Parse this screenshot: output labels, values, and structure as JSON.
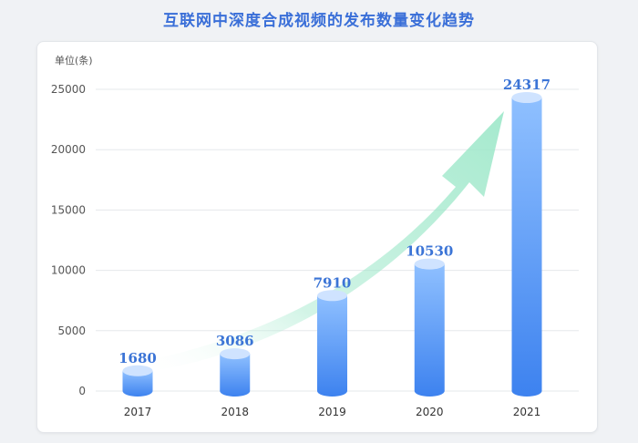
{
  "title": "互联网中深度合成视频的发布数量变化趋势",
  "chart_data": {
    "type": "bar",
    "title": "互联网中深度合成视频的发布数量变化趋势",
    "ylabel": "单位(条)",
    "xlabel": "",
    "categories": [
      "2017",
      "2018",
      "2019",
      "2020",
      "2021"
    ],
    "values": [
      1680,
      3086,
      7910,
      10530,
      24317
    ],
    "ylim": [
      0,
      25000
    ],
    "yticks": [
      0,
      5000,
      10000,
      15000,
      20000,
      25000
    ],
    "grid": true,
    "colors": {
      "bar_top": "#8fc0ff",
      "bar_bottom": "#3d82ef",
      "cap": "#cfe3ff",
      "label": "#3b74d6",
      "arrow": "#9be7c8"
    }
  }
}
